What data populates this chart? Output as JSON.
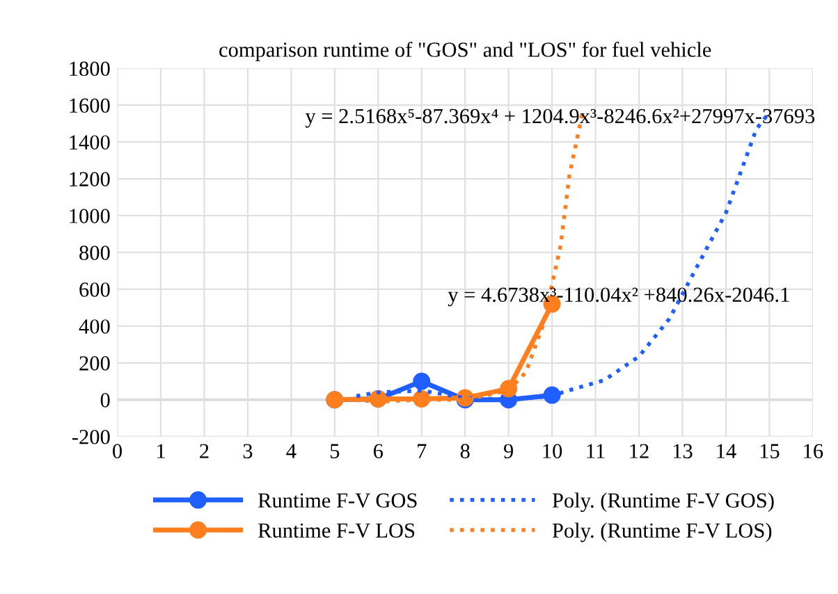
{
  "chart_data": {
    "type": "line",
    "title": "comparison runtime of \"GOS\" and \"LOS\" for fuel vehicle",
    "xlim": [
      0,
      16
    ],
    "xticks": [
      0,
      1,
      2,
      3,
      4,
      5,
      6,
      7,
      8,
      9,
      10,
      11,
      12,
      13,
      14,
      15,
      16
    ],
    "ylim": [
      -200,
      1800
    ],
    "yticks": [
      -200,
      0,
      200,
      400,
      600,
      800,
      1000,
      1200,
      1400,
      1600,
      1800
    ],
    "grid": true,
    "legend": "bottom",
    "annotations": [
      "y = 2.5168x⁵-87.369x⁴ + 1204.9x³-8246.6x²+27997x-37693",
      "y = 4.6738x³-110.04x² +840.26x-2046.1"
    ],
    "series": [
      {
        "name": "Runtime F-V GOS",
        "color": "#1f5fff",
        "marker": "circle",
        "line_style": "solid",
        "x": [
          5,
          6,
          7,
          8,
          9,
          10
        ],
        "values": [
          0,
          5,
          100,
          0,
          0,
          25
        ]
      },
      {
        "name": "Runtime F-V LOS",
        "color": "#ff7f1e",
        "marker": "circle",
        "line_style": "solid",
        "x": [
          5,
          6,
          7,
          8,
          9,
          10
        ],
        "values": [
          0,
          5,
          5,
          10,
          60,
          520
        ]
      },
      {
        "name": "Poly. (Runtime F-V GOS)",
        "color": "#1f5fff",
        "marker": "none",
        "line_style": "dotted",
        "x": [
          5.5,
          6,
          7,
          8,
          9,
          10,
          10.3,
          11.2,
          12,
          12.7,
          13.6,
          14,
          14.7,
          15
        ],
        "values": [
          20,
          40,
          50,
          10,
          0,
          20,
          45,
          106,
          235,
          440,
          840,
          1015,
          1470,
          1560
        ]
      },
      {
        "name": "Poly. (Runtime F-V LOS)",
        "color": "#ff7f1e",
        "marker": "none",
        "line_style": "dotted",
        "x": [
          5,
          6,
          7,
          8,
          9,
          9.4,
          9.8,
          10.2,
          10.4,
          10.65,
          10.7
        ],
        "values": [
          5,
          -10,
          0,
          0,
          50,
          150,
          410,
          840,
          1220,
          1500,
          1560
        ]
      }
    ]
  }
}
